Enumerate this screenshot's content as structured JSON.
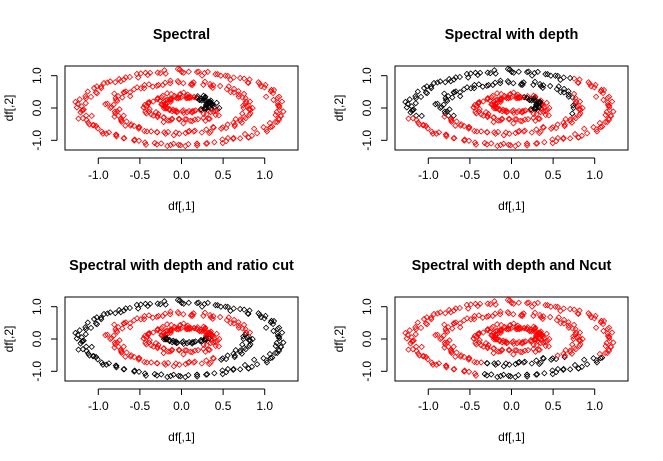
{
  "chart_data": [
    {
      "type": "scatter",
      "title": "Spectral",
      "xlabel": "df[,1]",
      "ylabel": "df[,2]",
      "xlim": [
        -1.4,
        1.4
      ],
      "ylim": [
        -1.3,
        1.3
      ],
      "xticks": [
        "-1.0",
        "-0.5",
        "0.0",
        "0.5",
        "1.0"
      ],
      "yticks": [
        "-1.0",
        "0.0",
        "1.0"
      ],
      "grid": false,
      "legend": "none",
      "data_generator": "three concentric noisy ellipses (x = r*cos t, y = 0.95*r*sin t, r in {1.2, 0.8, 0.4}) plus a central ring near (0.2, 0.0); 422 points",
      "cluster_rule": "red for almost all points; black for a small dense group near (0.2..0.45, 0.0..0.4)",
      "colors": {
        "cluster_1": "#000000",
        "cluster_2": "#ff0000"
      }
    },
    {
      "type": "scatter",
      "title": "Spectral with depth",
      "xlabel": "df[,1]",
      "ylabel": "df[,2]",
      "xlim": [
        -1.4,
        1.4
      ],
      "ylim": [
        -1.3,
        1.3
      ],
      "xticks": [
        "-1.0",
        "-0.5",
        "0.0",
        "0.5",
        "1.0"
      ],
      "yticks": [
        "-1.0",
        "0.0",
        "1.0"
      ],
      "grid": false,
      "legend": "none",
      "cluster_rule": "black for upper-left half of rings and a small central group; red for lower-right half and inner ring",
      "colors": {
        "cluster_1": "#000000",
        "cluster_2": "#ff0000"
      }
    },
    {
      "type": "scatter",
      "title": "Spectral with depth and ratio cut",
      "xlabel": "df[,1]",
      "ylabel": "df[,2]",
      "xlim": [
        -1.4,
        1.4
      ],
      "ylim": [
        -1.3,
        1.3
      ],
      "xticks": [
        "-1.0",
        "-0.5",
        "0.0",
        "0.5",
        "1.0"
      ],
      "yticks": [
        "-1.0",
        "0.0",
        "1.0"
      ],
      "grid": false,
      "legend": "none",
      "cluster_rule": "black for the outer ring and a band through the middle; red for the remaining inner structure",
      "colors": {
        "cluster_1": "#000000",
        "cluster_2": "#ff0000"
      }
    },
    {
      "type": "scatter",
      "title": "Spectral with depth and Ncut",
      "xlabel": "df[,1]",
      "ylabel": "df[,2]",
      "xlim": [
        -1.4,
        1.4
      ],
      "ylim": [
        -1.3,
        1.3
      ],
      "xticks": [
        "-1.0",
        "-0.5",
        "0.0",
        "0.5",
        "1.0"
      ],
      "yticks": [
        "-1.0",
        "0.0",
        "1.0"
      ],
      "grid": false,
      "legend": "none",
      "cluster_rule": "black for the lower arc of the outer ring (y < -0.5, x > -0.3); red elsewhere",
      "colors": {
        "cluster_1": "#000000",
        "cluster_2": "#ff0000"
      }
    }
  ]
}
